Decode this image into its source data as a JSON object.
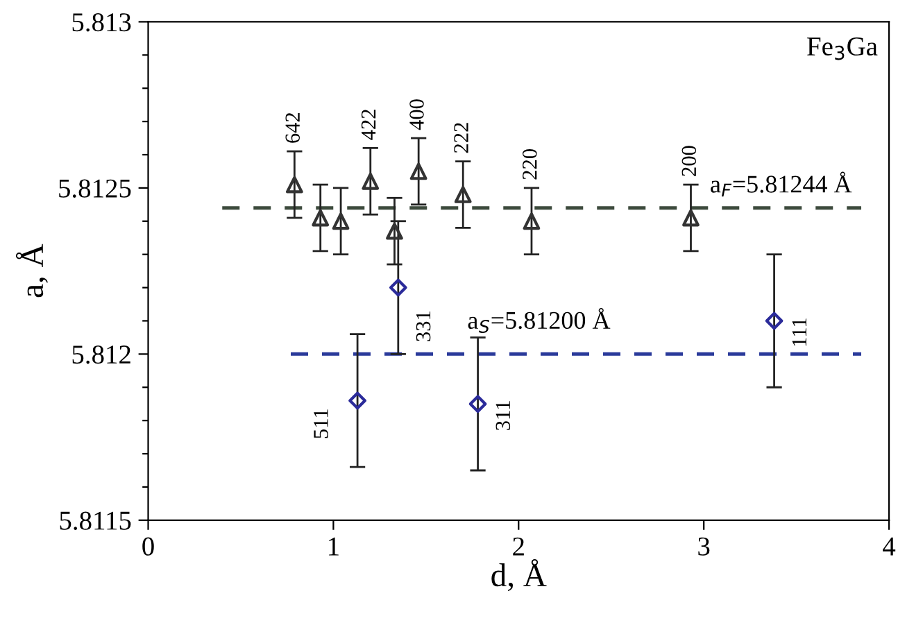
{
  "chart_data": {
    "type": "scatter",
    "xlabel": "d, Å",
    "ylabel": "a, Å",
    "xlim": [
      0,
      4
    ],
    "xticks": [
      0,
      1,
      2,
      3,
      4
    ],
    "ylim": [
      5.8115,
      5.813
    ],
    "yticks": [
      {
        "value": 5.8115,
        "label": "5.8115"
      },
      {
        "value": 5.8116,
        "label": null
      },
      {
        "value": 5.8117,
        "label": null
      },
      {
        "value": 5.8118,
        "label": null
      },
      {
        "value": 5.8119,
        "label": null
      },
      {
        "value": 5.812,
        "label": "5.812"
      },
      {
        "value": 5.8121,
        "label": null
      },
      {
        "value": 5.8122,
        "label": null
      },
      {
        "value": 5.8123,
        "label": null
      },
      {
        "value": 5.8124,
        "label": null
      },
      {
        "value": 5.8125,
        "label": "5.8125"
      },
      {
        "value": 5.8126,
        "label": null
      },
      {
        "value": 5.8127,
        "label": null
      },
      {
        "value": 5.8128,
        "label": null
      },
      {
        "value": 5.8129,
        "label": null
      },
      {
        "value": 5.813,
        "label": "5.813"
      }
    ],
    "grid": false,
    "legend": false,
    "series": [
      {
        "marker": "triangle",
        "color": "#333333",
        "x": [
          0.79,
          0.93,
          1.04,
          1.2,
          1.33,
          1.46,
          1.7,
          2.07,
          2.93
        ],
        "values": [
          5.81251,
          5.81241,
          5.8124,
          5.81252,
          5.81237,
          5.81255,
          5.81248,
          5.8124,
          5.81241
        ],
        "errors": [
          0.0001,
          0.0001,
          0.0001,
          0.0001,
          0.0001,
          0.0001,
          0.0001,
          0.0001,
          0.0001
        ]
      },
      {
        "marker": "diamond",
        "color": "#2b2b9a",
        "x": [
          1.13,
          1.35,
          1.78,
          3.38
        ],
        "values": [
          5.81186,
          5.8122,
          5.81185,
          5.8121
        ],
        "errors": [
          0.0002,
          0.0002,
          0.0002,
          0.0002
        ]
      },
      {
        "type": "line",
        "line_style": "dashed",
        "name": "a$_{F}$=5.81244 Å",
        "color": "#3c4a3c",
        "x": [
          0.4,
          3.85
        ],
        "values": [
          5.81244,
          5.81244
        ]
      },
      {
        "type": "line",
        "line_style": "dashed",
        "name": "a$_{S}$=5.81200 Å",
        "color": "#2a3a9a",
        "x": [
          0.77,
          3.85
        ],
        "values": [
          5.812,
          5.812
        ]
      }
    ],
    "annotations": [
      "Fe$_{3}$Ga",
      {
        "text": "642",
        "x": 0.79,
        "y": 5.81251
      },
      {
        "text": "422",
        "x": 1.2,
        "y": 5.81252
      },
      {
        "text": "400",
        "x": 1.46,
        "y": 5.81255
      },
      {
        "text": "222",
        "x": 1.7,
        "y": 5.81248
      },
      {
        "text": "220",
        "x": 2.07,
        "y": 5.8124
      },
      {
        "text": "200",
        "x": 2.93,
        "y": 5.81241
      },
      {
        "text": "331",
        "x": 1.35,
        "y": 5.8122
      },
      {
        "text": "511",
        "x": 1.13,
        "y": 5.81186
      },
      {
        "text": "311",
        "x": 1.78,
        "y": 5.81185
      },
      {
        "text": "111",
        "x": 3.38,
        "y": 5.8121
      }
    ]
  }
}
